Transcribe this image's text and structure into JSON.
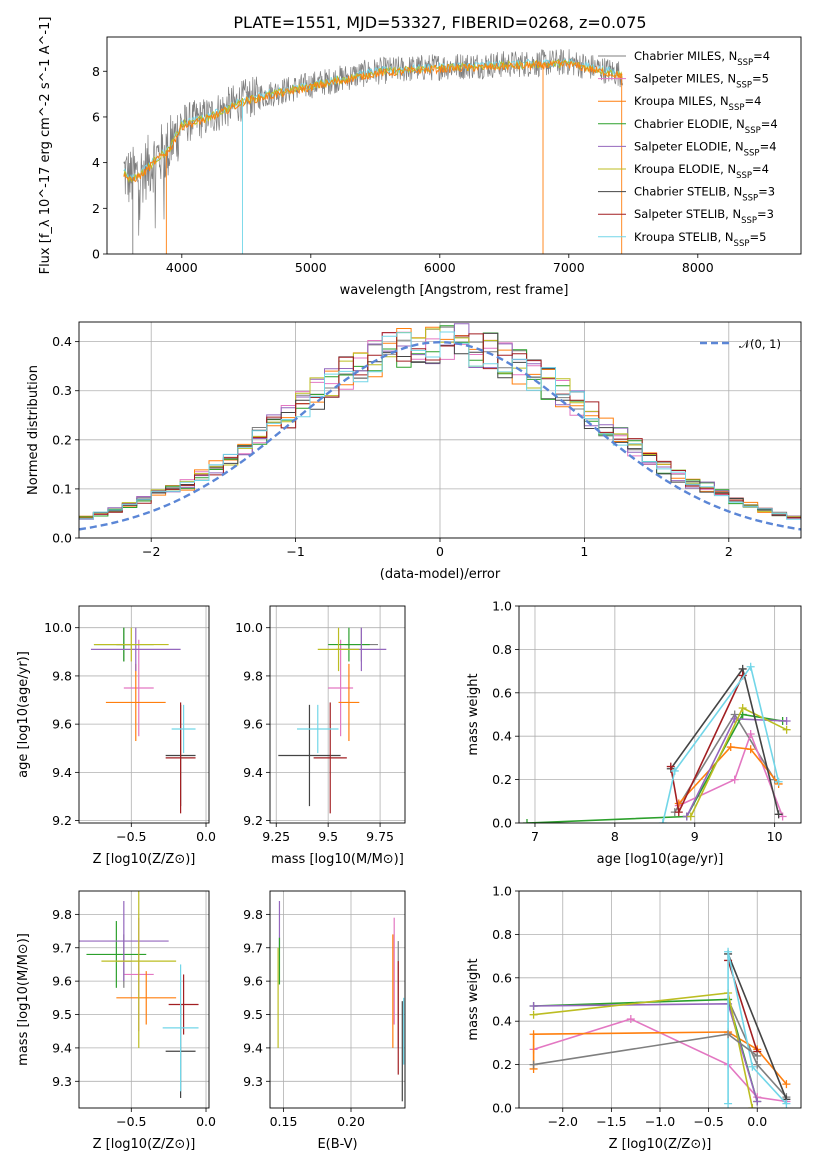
{
  "title": "PLATE=1551, MJD=53327, FIBERID=0268, z=0.075",
  "series_colors": {
    "Chabrier MILES": "#7f7f7f",
    "Salpeter MILES": "#e377c2",
    "Kroupa MILES": "#ff7f0e",
    "Chabrier ELODIE": "#2ca02c",
    "Salpeter ELODIE": "#9467bd",
    "Kroupa ELODIE": "#bcbd22",
    "Chabrier STELIB": "#444444",
    "Salpeter STELIB": "#a21f22",
    "Kroupa STELIB": "#72d6e8"
  },
  "chart_data": [
    {
      "id": "spectrum",
      "type": "line",
      "xlabel": "wavelength [Angstrom, rest frame]",
      "ylabel": "Flux [f_λ 10^-17 erg cm^-2 s^-1 A^-1]",
      "xlim": [
        3420,
        8800
      ],
      "ylim": [
        0,
        9.5
      ],
      "xticks": [
        4000,
        5000,
        6000,
        7000,
        8000
      ],
      "yticks": [
        0,
        2,
        4,
        6,
        8
      ],
      "grid": false,
      "legend_position": "right",
      "spectrum_trend": {
        "x": [
          3550,
          3600,
          3700,
          3800,
          3900,
          4000,
          4200,
          4500,
          5000,
          5500,
          6000,
          6500,
          7000,
          7400
        ],
        "y": [
          3.6,
          3.3,
          3.6,
          4.2,
          4.6,
          5.7,
          6.0,
          6.8,
          7.4,
          8.0,
          8.2,
          8.3,
          8.4,
          7.9
        ]
      },
      "legend": [
        {
          "label": "Chabrier MILES",
          "nssp": "4"
        },
        {
          "label": "Salpeter MILES",
          "nssp": "5"
        },
        {
          "label": "Kroupa MILES",
          "nssp": "4"
        },
        {
          "label": "Chabrier ELODIE",
          "nssp": "4"
        },
        {
          "label": "Salpeter ELODIE",
          "nssp": "4"
        },
        {
          "label": "Kroupa ELODIE",
          "nssp": "4"
        },
        {
          "label": "Chabrier STELIB",
          "nssp": "3"
        },
        {
          "label": "Salpeter STELIB",
          "nssp": "3"
        },
        {
          "label": "Kroupa STELIB",
          "nssp": "5"
        }
      ]
    },
    {
      "id": "residuals",
      "type": "line",
      "xlabel": "(data-model)/error",
      "ylabel": "Normed distribution",
      "xlim": [
        -2.5,
        2.5
      ],
      "ylim": [
        0,
        0.44
      ],
      "xticks": [
        -2,
        -1,
        0,
        1,
        2
      ],
      "yticks": [
        0.0,
        0.1,
        0.2,
        0.3,
        0.4
      ],
      "grid": true,
      "legend": [
        {
          "label": "𝒩(0, 1)"
        }
      ],
      "legend_position": "top-right",
      "histogram_bin_width": 0.1
    },
    {
      "id": "age_vs_Z",
      "type": "scatter",
      "xlabel": "Z [log10(Z/Z⊙)]",
      "ylabel": "age [log10(age/yr)]",
      "xlim": [
        -0.85,
        0.02
      ],
      "ylim": [
        9.19,
        10.09
      ],
      "xticks": [
        -0.5,
        0.0
      ],
      "xticklabels": [
        "−0.5",
        "0.0"
      ],
      "yticks": [
        9.2,
        9.4,
        9.6,
        9.8,
        10.0
      ],
      "grid": true,
      "points": [
        {
          "series": "Chabrier MILES",
          "x": -0.55,
          "xerr": 0.05,
          "y": 9.93,
          "yerr": 0.07
        },
        {
          "series": "Salpeter MILES",
          "x": -0.45,
          "xerr": 0.1,
          "y": 9.75,
          "yerr": 0.2
        },
        {
          "series": "Kroupa MILES",
          "x": -0.47,
          "xerr": 0.2,
          "y": 9.69,
          "yerr": 0.16
        },
        {
          "series": "Chabrier ELODIE",
          "x": -0.55,
          "xerr": 0.2,
          "y": 9.93,
          "yerr": 0.07
        },
        {
          "series": "Salpeter ELODIE",
          "x": -0.47,
          "xerr": 0.3,
          "y": 9.91,
          "yerr": 0.09
        },
        {
          "series": "Kroupa ELODIE",
          "x": -0.5,
          "xerr": 0.25,
          "y": 9.93,
          "yerr": 0.07
        },
        {
          "series": "Chabrier STELIB",
          "x": -0.17,
          "xerr": 0.1,
          "y": 9.47,
          "yerr": 0.21
        },
        {
          "series": "Salpeter STELIB",
          "x": -0.17,
          "xerr": 0.1,
          "y": 9.46,
          "yerr": 0.23
        },
        {
          "series": "Kroupa STELIB",
          "x": -0.15,
          "xerr": 0.08,
          "y": 9.58,
          "yerr": 0.1
        }
      ]
    },
    {
      "id": "age_vs_mass",
      "type": "scatter",
      "xlabel": "mass [log10(M/M⊙)]",
      "ylabel": "",
      "xlim": [
        9.22,
        9.87
      ],
      "ylim": [
        9.19,
        10.09
      ],
      "xticks": [
        9.25,
        9.5,
        9.75
      ],
      "yticks": [
        9.2,
        9.4,
        9.6,
        9.8,
        10.0
      ],
      "grid": true,
      "points": [
        {
          "series": "Chabrier MILES",
          "x": 9.66,
          "xerr": 0.08,
          "y": 9.93,
          "yerr": 0.07
        },
        {
          "series": "Salpeter MILES",
          "x": 9.56,
          "xerr": 0.06,
          "y": 9.75,
          "yerr": 0.2
        },
        {
          "series": "Kroupa MILES",
          "x": 9.6,
          "xerr": 0.05,
          "y": 9.69,
          "yerr": 0.16
        },
        {
          "series": "Chabrier ELODIE",
          "x": 9.6,
          "xerr": 0.1,
          "y": 9.93,
          "yerr": 0.07
        },
        {
          "series": "Salpeter ELODIE",
          "x": 9.66,
          "xerr": 0.12,
          "y": 9.91,
          "yerr": 0.09
        },
        {
          "series": "Kroupa ELODIE",
          "x": 9.55,
          "xerr": 0.1,
          "y": 9.91,
          "yerr": 0.09
        },
        {
          "series": "Chabrier STELIB",
          "x": 9.41,
          "xerr": 0.15,
          "y": 9.47,
          "yerr": 0.21
        },
        {
          "series": "Salpeter STELIB",
          "x": 9.51,
          "xerr": 0.08,
          "y": 9.46,
          "yerr": 0.23
        },
        {
          "series": "Kroupa STELIB",
          "x": 9.45,
          "xerr": 0.1,
          "y": 9.58,
          "yerr": 0.1
        }
      ]
    },
    {
      "id": "weight_vs_age",
      "type": "line",
      "xlabel": "age [log10(age/yr)]",
      "ylabel": "mass weight",
      "xlim": [
        6.8,
        10.33
      ],
      "ylim": [
        0,
        1
      ],
      "xticks": [
        7,
        8,
        9,
        10
      ],
      "yticks": [
        0.0,
        0.2,
        0.4,
        0.6,
        0.8,
        1.0
      ],
      "grid": true,
      "series": [
        {
          "name": "Chabrier MILES",
          "x": [
            8.75,
            9.5,
            10.0
          ],
          "y": [
            0.05,
            0.5,
            0.2
          ]
        },
        {
          "name": "Salpeter MILES",
          "x": [
            8.8,
            9.5,
            9.7,
            10.1
          ],
          "y": [
            0.08,
            0.2,
            0.41,
            0.03
          ]
        },
        {
          "name": "Kroupa MILES",
          "x": [
            8.8,
            9.45,
            9.7,
            10.05
          ],
          "y": [
            0.09,
            0.35,
            0.34,
            0.18
          ]
        },
        {
          "name": "Chabrier ELODIE",
          "x": [
            6.9,
            8.9,
            9.6,
            10.1
          ],
          "y": [
            0.0,
            0.03,
            0.5,
            0.47
          ]
        },
        {
          "name": "Salpeter ELODIE",
          "x": [
            8.9,
            9.5,
            10.15
          ],
          "y": [
            0.03,
            0.48,
            0.47
          ]
        },
        {
          "name": "Kroupa ELODIE",
          "x": [
            8.95,
            9.6,
            10.15
          ],
          "y": [
            0.03,
            0.53,
            0.43
          ]
        },
        {
          "name": "Chabrier STELIB",
          "x": [
            8.7,
            9.6,
            10.05
          ],
          "y": [
            0.25,
            0.71,
            0.04
          ]
        },
        {
          "name": "Salpeter STELIB",
          "x": [
            8.7,
            8.8,
            9.6
          ],
          "y": [
            0.26,
            0.05,
            0.68
          ]
        },
        {
          "name": "Kroupa STELIB",
          "x": [
            8.6,
            8.75,
            9.7,
            10.05
          ],
          "y": [
            0.0,
            0.24,
            0.72,
            0.19
          ]
        }
      ]
    },
    {
      "id": "mass_vs_Z",
      "type": "scatter",
      "xlabel": "Z [log10(Z/Z⊙)]",
      "ylabel": "mass [log10(M/M⊙)]",
      "xlim": [
        -0.85,
        0.02
      ],
      "ylim": [
        9.22,
        9.87
      ],
      "xticks": [
        -0.5,
        0.0
      ],
      "xticklabels": [
        "−0.5",
        "0.0"
      ],
      "yticks": [
        9.3,
        9.4,
        9.5,
        9.6,
        9.7,
        9.8
      ],
      "grid": true,
      "points": [
        {
          "series": "Chabrier MILES",
          "x": -0.55,
          "xerr": 0.05,
          "y": 9.66,
          "yerr": 0.08
        },
        {
          "series": "Salpeter MILES",
          "x": -0.45,
          "xerr": 0.1,
          "y": 9.62,
          "yerr": 0.17
        },
        {
          "series": "Kroupa MILES",
          "x": -0.4,
          "xerr": 0.2,
          "y": 9.55,
          "yerr": 0.08
        },
        {
          "series": "Chabrier ELODIE",
          "x": -0.6,
          "xerr": 0.2,
          "y": 9.68,
          "yerr": 0.1
        },
        {
          "series": "Salpeter ELODIE",
          "x": -0.55,
          "xerr": 0.3,
          "y": 9.72,
          "yerr": 0.12
        },
        {
          "series": "Kroupa ELODIE",
          "x": -0.45,
          "xerr": 0.25,
          "y": 9.66,
          "yerr": 0.26
        },
        {
          "series": "Chabrier STELIB",
          "x": -0.17,
          "xerr": 0.1,
          "y": 9.39,
          "yerr": 0.14
        },
        {
          "series": "Salpeter STELIB",
          "x": -0.15,
          "xerr": 0.1,
          "y": 9.53,
          "yerr": 0.09
        },
        {
          "series": "Kroupa STELIB",
          "x": -0.17,
          "xerr": 0.12,
          "y": 9.46,
          "yerr": 0.19
        }
      ]
    },
    {
      "id": "mass_vs_ebv",
      "type": "scatter",
      "xlabel": "E(B-V)",
      "ylabel": "",
      "xlim": [
        0.14,
        0.24
      ],
      "ylim": [
        9.22,
        9.87
      ],
      "xticks": [
        0.15,
        0.2
      ],
      "xticklabels": [
        "0.15",
        "0.20"
      ],
      "yticks": [
        9.3,
        9.4,
        9.5,
        9.6,
        9.7,
        9.8
      ],
      "grid": true,
      "points": [
        {
          "series": "Salpeter MILES",
          "x": 0.232,
          "y": 9.63,
          "yerr": 0.16
        },
        {
          "series": "Kroupa MILES",
          "x": 0.231,
          "y": 9.57,
          "yerr": 0.17
        },
        {
          "series": "Chabrier MILES",
          "x": 0.235,
          "y": 9.56,
          "yerr": 0.16
        },
        {
          "series": "Salpeter ELODIE",
          "x": 0.147,
          "y": 9.77,
          "yerr": 0.07
        },
        {
          "series": "Kroupa ELODIE",
          "x": 0.146,
          "y": 9.55,
          "yerr": 0.15
        },
        {
          "series": "Chabrier ELODIE",
          "x": 0.147,
          "y": 9.66,
          "yerr": 0.07
        },
        {
          "series": "Salpeter STELIB",
          "x": 0.235,
          "y": 9.49,
          "yerr": 0.17
        },
        {
          "series": "Chabrier STELIB",
          "x": 0.238,
          "y": 9.39,
          "yerr": 0.15
        },
        {
          "series": "Kroupa STELIB",
          "x": 0.239,
          "y": 9.45,
          "yerr": 0.1
        }
      ]
    },
    {
      "id": "weight_vs_Z",
      "type": "line",
      "xlabel": "Z [log10(Z/Z⊙)]",
      "ylabel": "mass weight",
      "xlim": [
        -2.45,
        0.45
      ],
      "ylim": [
        0,
        1
      ],
      "xticks": [
        -2.0,
        -1.5,
        -1.0,
        -0.5,
        0.0
      ],
      "xticklabels": [
        "−2.0",
        "−1.5",
        "−1.0",
        "−0.5",
        "0.0"
      ],
      "yticks": [
        0.0,
        0.2,
        0.4,
        0.6,
        0.8,
        1.0
      ],
      "grid": true,
      "series": [
        {
          "name": "Chabrier MILES",
          "x": [
            -0.3,
            0.0,
            0.3
          ],
          "y": [
            0.5,
            0.2,
            0.05
          ]
        },
        {
          "name": "Salpeter MILES",
          "x": [
            -2.3,
            -1.3,
            -0.3,
            0.0,
            0.3
          ],
          "y": [
            0.27,
            0.41,
            0.2,
            0.05,
            0.03
          ]
        },
        {
          "name": "Kroupa MILES",
          "x": [
            -2.3,
            -2.3,
            -0.3,
            0.0,
            0.3
          ],
          "y": [
            0.18,
            0.34,
            0.35,
            0.27,
            0.11
          ]
        },
        {
          "name": "Chabrier ELODIE",
          "x": [
            -2.3,
            -0.3,
            0.0
          ],
          "y": [
            0.47,
            0.5,
            0.03
          ]
        },
        {
          "name": "Salpeter ELODIE",
          "x": [
            -2.3,
            -0.3,
            0.0
          ],
          "y": [
            0.47,
            0.48,
            0.03
          ]
        },
        {
          "name": "Kroupa ELODIE",
          "x": [
            -2.3,
            -0.3,
            -0.05
          ],
          "y": [
            0.43,
            0.53,
            0.0
          ]
        },
        {
          "name": "Chabrier STELIB",
          "x": [
            -0.3,
            0.3
          ],
          "y": [
            0.71,
            0.04
          ]
        },
        {
          "name": "Salpeter STELIB",
          "x": [
            -0.3,
            0.0
          ],
          "y": [
            0.68,
            0.26
          ]
        },
        {
          "name": "Kroupa STELIB",
          "x": [
            -0.3,
            -0.3,
            -0.05,
            0.3
          ],
          "y": [
            0.02,
            0.72,
            0.19,
            0.02
          ]
        },
        {
          "name": "Chabrier MILES",
          "x": [
            -2.3,
            -0.3,
            0.0
          ],
          "y": [
            0.2,
            0.34,
            0.24
          ]
        }
      ]
    }
  ]
}
